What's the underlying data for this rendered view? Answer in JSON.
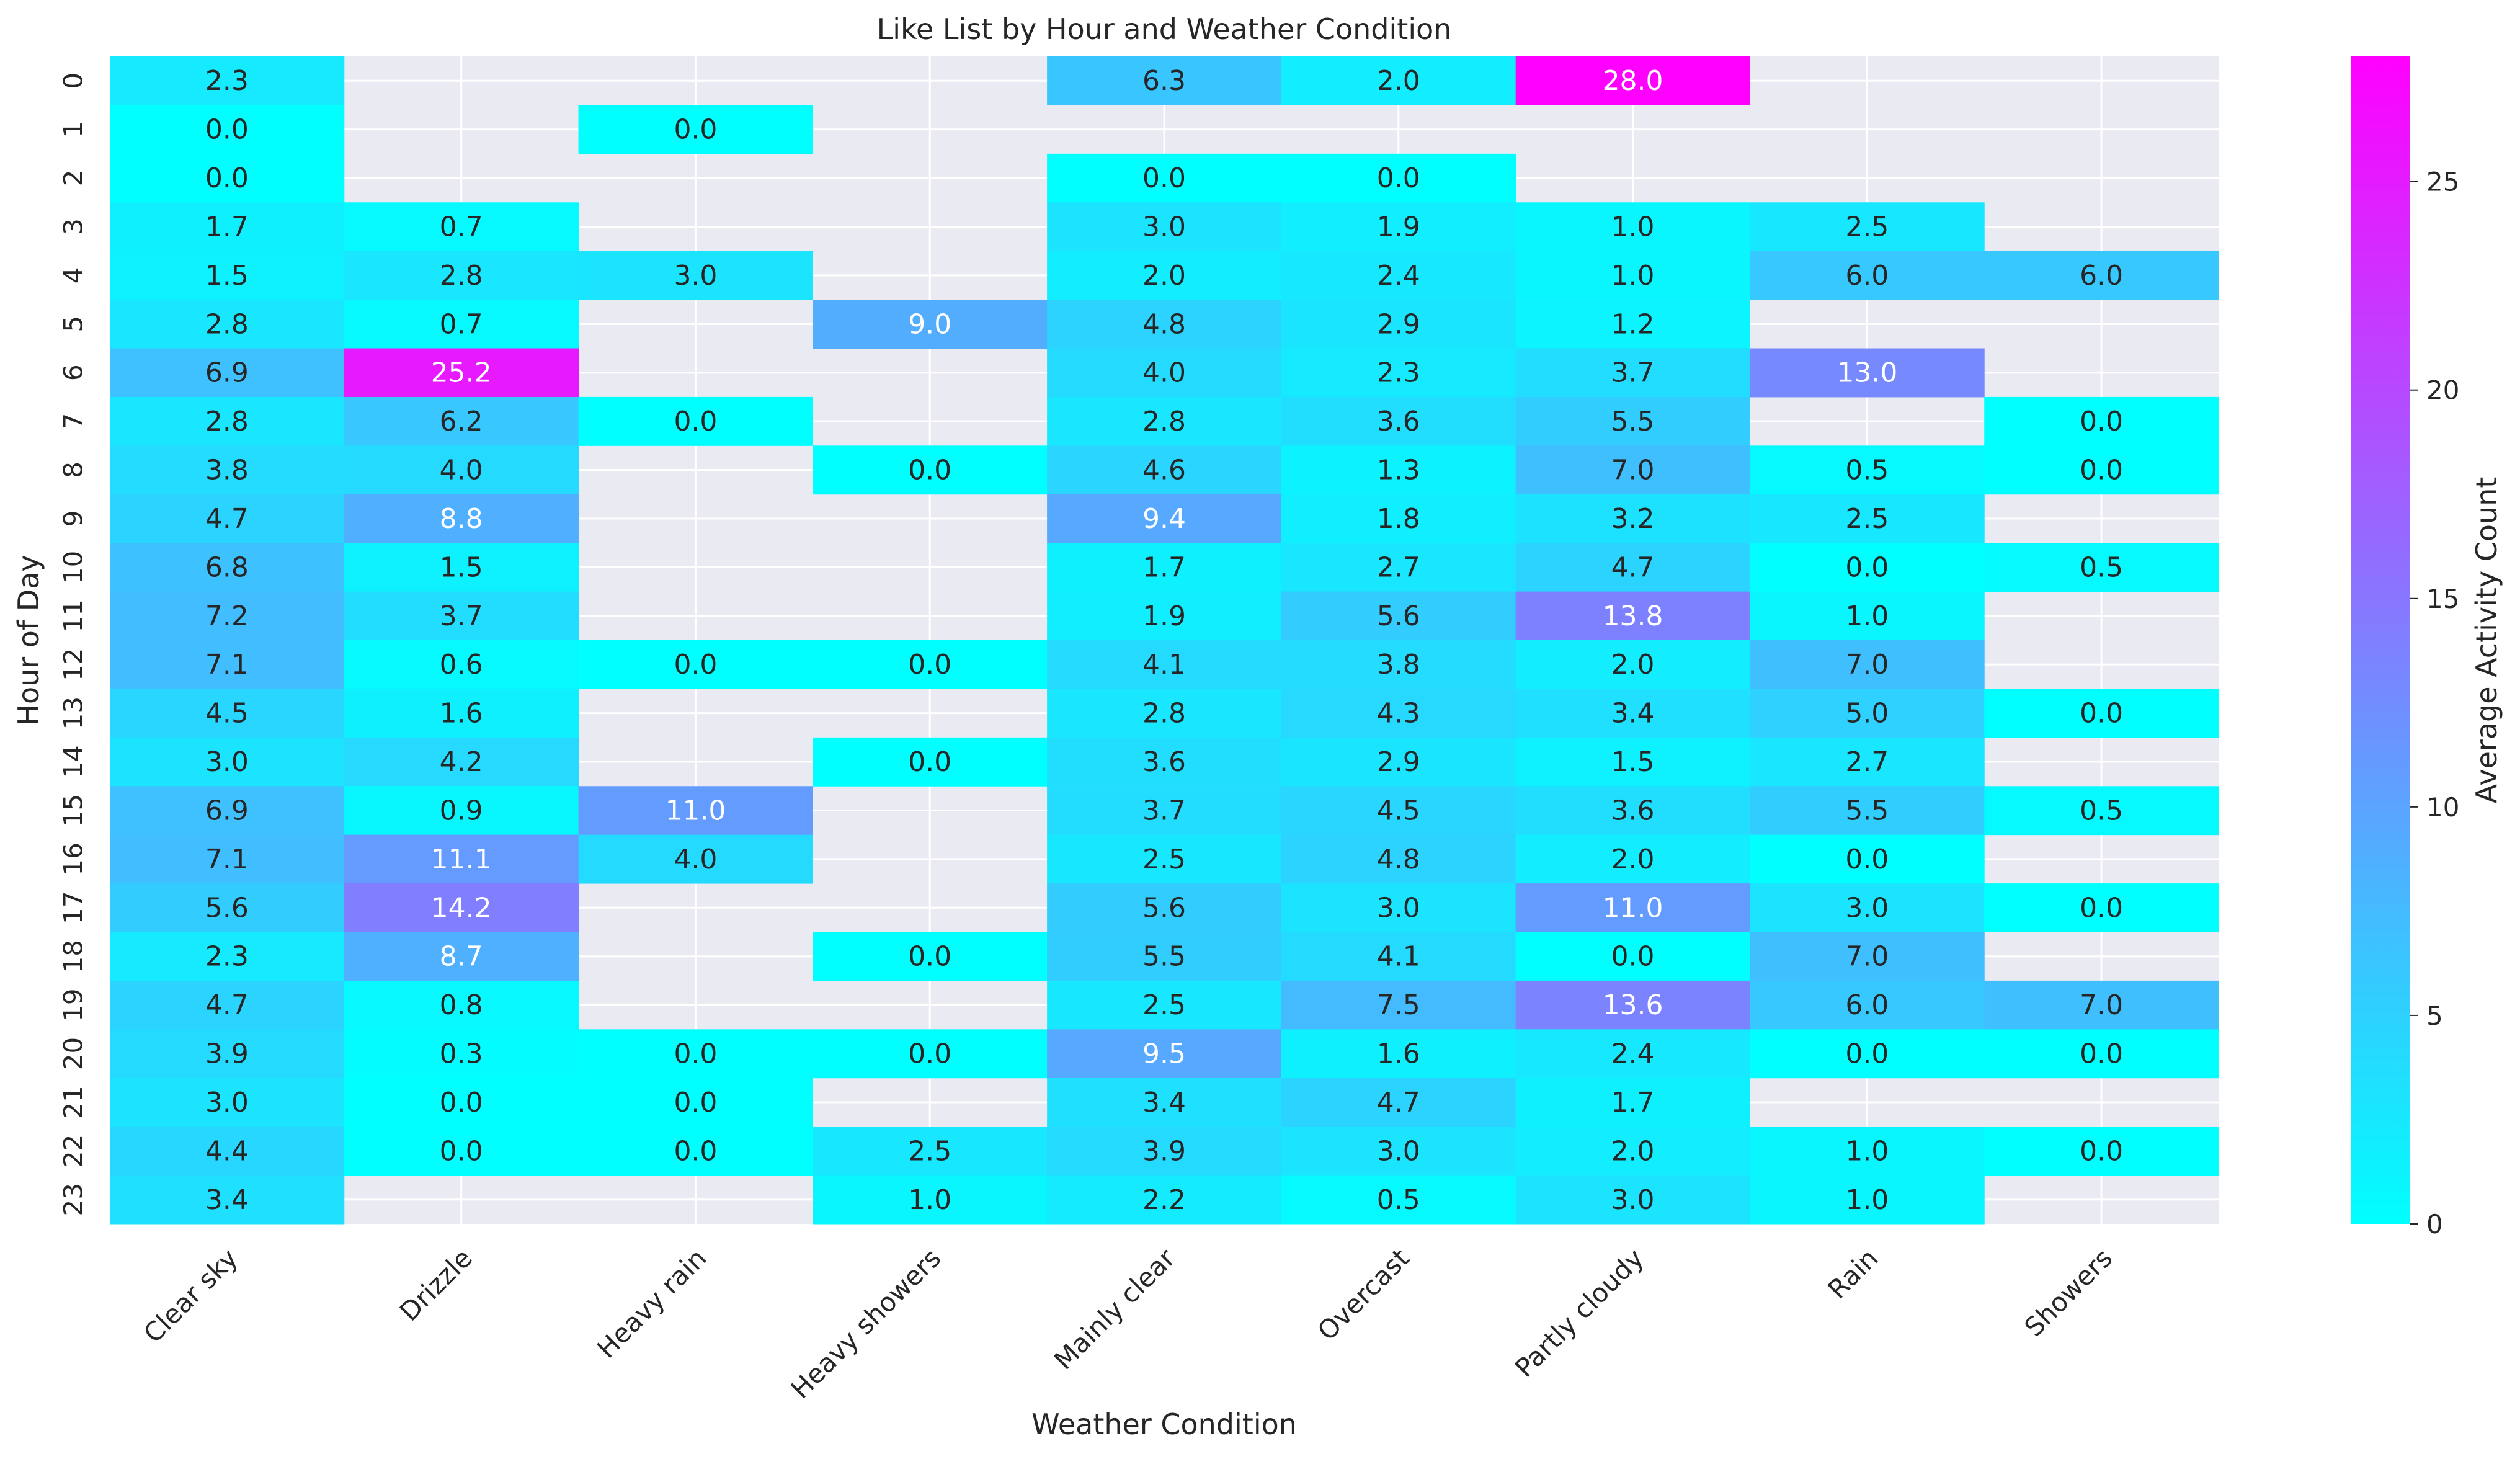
{
  "chart_data": {
    "type": "heatmap",
    "title": "Like List by Hour and Weather Condition",
    "xlabel": "Weather Condition",
    "ylabel": "Hour of Day",
    "colorbar_label": "Average Activity Count",
    "colormap": "cool",
    "colorbar_range": [
      0,
      28
    ],
    "colorbar_ticks": [
      "0",
      "5",
      "10",
      "15",
      "20",
      "25"
    ],
    "grid": true,
    "x_categories": [
      "Clear sky",
      "Drizzle",
      "Heavy rain",
      "Heavy showers",
      "Mainly clear",
      "Overcast",
      "Partly cloudy",
      "Rain",
      "Showers"
    ],
    "y_categories": [
      "0",
      "1",
      "2",
      "3",
      "4",
      "5",
      "6",
      "7",
      "8",
      "9",
      "10",
      "11",
      "12",
      "13",
      "14",
      "15",
      "16",
      "17",
      "18",
      "19",
      "20",
      "21",
      "22",
      "23"
    ],
    "values": [
      [
        2.3,
        null,
        null,
        null,
        6.3,
        2.0,
        28.0,
        null,
        null
      ],
      [
        0.0,
        null,
        0.0,
        null,
        null,
        null,
        null,
        null,
        null
      ],
      [
        0.0,
        null,
        null,
        null,
        0.0,
        0.0,
        null,
        null,
        null
      ],
      [
        1.7,
        0.7,
        null,
        null,
        3.0,
        1.9,
        1.0,
        2.5,
        null
      ],
      [
        1.5,
        2.8,
        3.0,
        null,
        2.0,
        2.4,
        1.0,
        6.0,
        6.0
      ],
      [
        2.8,
        0.7,
        null,
        9.0,
        4.8,
        2.9,
        1.2,
        null,
        null
      ],
      [
        6.9,
        25.2,
        null,
        null,
        4.0,
        2.3,
        3.7,
        13.0,
        null
      ],
      [
        2.8,
        6.2,
        0.0,
        null,
        2.8,
        3.6,
        5.5,
        null,
        0.0
      ],
      [
        3.8,
        4.0,
        null,
        0.0,
        4.6,
        1.3,
        7.0,
        0.5,
        0.0
      ],
      [
        4.7,
        8.8,
        null,
        null,
        9.4,
        1.8,
        3.2,
        2.5,
        null
      ],
      [
        6.8,
        1.5,
        null,
        null,
        1.7,
        2.7,
        4.7,
        0.0,
        0.5
      ],
      [
        7.2,
        3.7,
        null,
        null,
        1.9,
        5.6,
        13.8,
        1.0,
        null
      ],
      [
        7.1,
        0.6,
        0.0,
        0.0,
        4.1,
        3.8,
        2.0,
        7.0,
        null
      ],
      [
        4.5,
        1.6,
        null,
        null,
        2.8,
        4.3,
        3.4,
        5.0,
        0.0
      ],
      [
        3.0,
        4.2,
        null,
        0.0,
        3.6,
        2.9,
        1.5,
        2.7,
        null
      ],
      [
        6.9,
        0.9,
        11.0,
        null,
        3.7,
        4.5,
        3.6,
        5.5,
        0.5
      ],
      [
        7.1,
        11.1,
        4.0,
        null,
        2.5,
        4.8,
        2.0,
        0.0,
        null
      ],
      [
        5.6,
        14.2,
        null,
        null,
        5.6,
        3.0,
        11.0,
        3.0,
        0.0
      ],
      [
        2.3,
        8.7,
        null,
        0.0,
        5.5,
        4.1,
        0.0,
        7.0,
        null
      ],
      [
        4.7,
        0.8,
        null,
        null,
        2.5,
        7.5,
        13.6,
        6.0,
        7.0
      ],
      [
        3.9,
        0.3,
        0.0,
        0.0,
        9.5,
        1.6,
        2.4,
        0.0,
        0.0
      ],
      [
        3.0,
        0.0,
        0.0,
        null,
        3.4,
        4.7,
        1.7,
        null,
        null
      ],
      [
        4.4,
        0.0,
        0.0,
        2.5,
        3.9,
        3.0,
        2.0,
        1.0,
        0.0
      ],
      [
        3.4,
        null,
        null,
        1.0,
        2.2,
        0.5,
        3.0,
        1.0,
        null
      ]
    ],
    "colors": {
      "background": "#eaeaf2",
      "gridline": "#ffffff",
      "low": "#00ffff",
      "high": "#ff00ff",
      "text_dark": "#262626",
      "text_light": "#ffffff"
    }
  }
}
